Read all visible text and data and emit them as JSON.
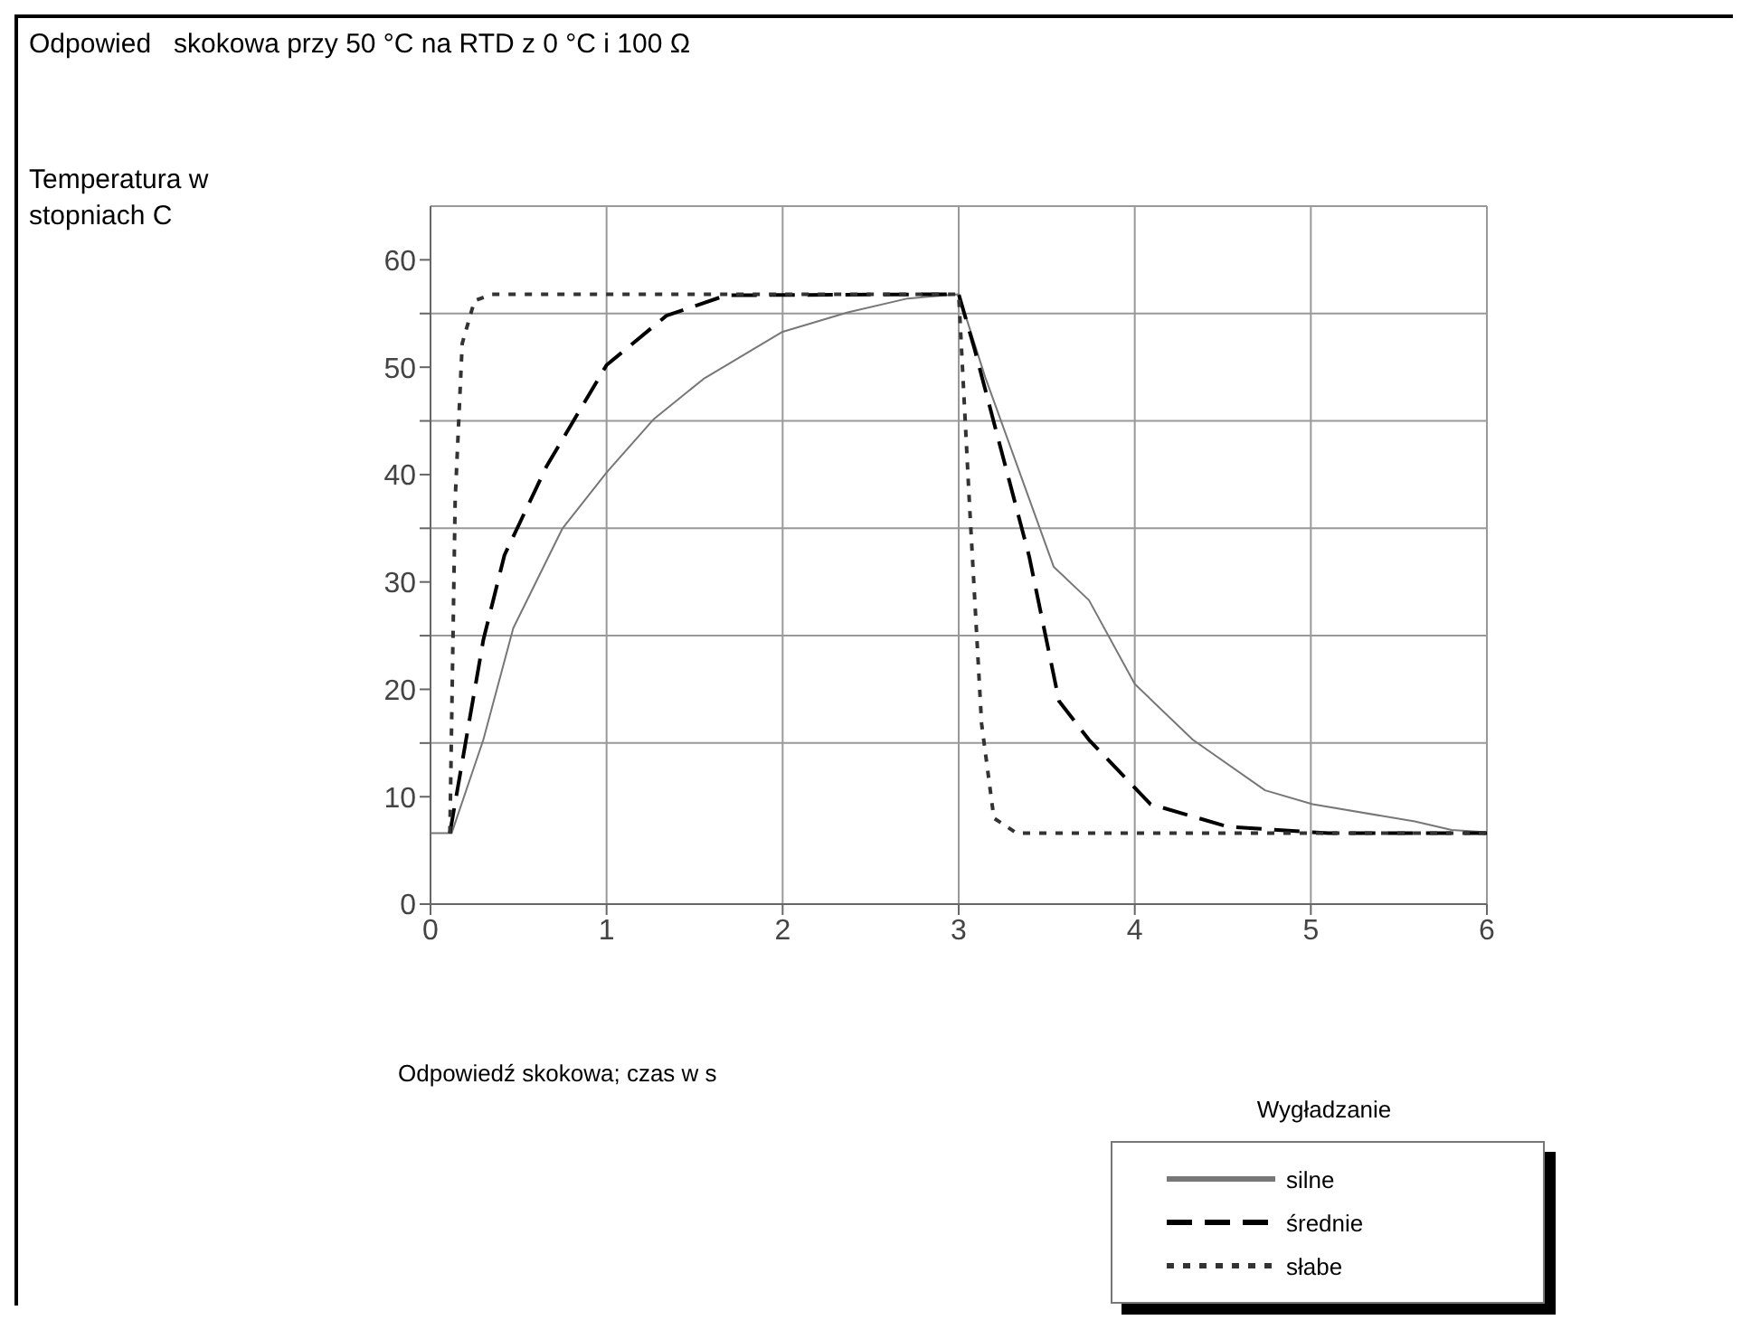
{
  "chart_data": {
    "type": "line",
    "title": "Odpowied   skokowa przy 50 °C na RTD z 0 °C i 100 Ω",
    "annotations": [
      "Temperatura w stopniach C",
      "Odpowiedź skokowa; czas w s"
    ],
    "legend_title": "Wygładzanie",
    "series": [
      {
        "name": "silne",
        "color": "#777777",
        "line_style": "solid",
        "x": [
          0,
          0.12,
          0.3,
          0.47,
          0.75,
          1.0,
          1.27,
          1.55,
          2.0,
          2.37,
          2.71,
          3.0,
          3.15,
          3.54,
          3.74,
          4.0,
          4.33,
          4.74,
          5.01,
          5.59,
          5.8,
          6.0
        ],
        "values": [
          6.6,
          6.6,
          15.3,
          25.7,
          35,
          40.2,
          45.2,
          48.9,
          53.3,
          55.1,
          56.4,
          56.8,
          49.1,
          31.4,
          28.3,
          20.5,
          15.3,
          10.6,
          9.3,
          7.7,
          6.9,
          6.7
        ]
      },
      {
        "name": "średnie",
        "color": "#000000",
        "line_style": "dashed",
        "x": [
          0.11,
          0.3,
          0.42,
          0.66,
          1.0,
          1.34,
          1.68,
          3.0,
          3.09,
          3.4,
          3.57,
          3.74,
          4.09,
          4.53,
          5.1,
          6.0
        ],
        "values": [
          6.6,
          24.6,
          32.5,
          40.8,
          50.2,
          54.8,
          56.7,
          56.8,
          51.7,
          32.4,
          18.9,
          15.3,
          9.3,
          7.2,
          6.6,
          6.6
        ]
      },
      {
        "name": "słabe",
        "color": "#333333",
        "line_style": "dotted",
        "x": [
          0.11,
          0.14,
          0.18,
          0.25,
          0.35,
          3.0,
          3.06,
          3.13,
          3.2,
          3.33,
          6.0
        ],
        "values": [
          6.6,
          37.6,
          52.2,
          56.2,
          56.8,
          56.8,
          37.6,
          16.8,
          8.0,
          6.6,
          6.6
        ]
      }
    ],
    "xlim": [
      0,
      6
    ],
    "xticks": [
      0,
      1,
      2,
      3,
      4,
      5,
      6
    ],
    "ylim": [
      0,
      65
    ],
    "yticks": [
      0,
      10,
      {
        "value": 15,
        "label": null
      },
      20,
      {
        "value": 25,
        "label": null
      },
      30,
      {
        "value": 35,
        "label": null
      },
      40,
      {
        "value": 45,
        "label": null
      },
      50,
      {
        "value": 55,
        "label": null
      },
      60
    ],
    "grid": true,
    "legend": "bottom right",
    "marker": "none"
  }
}
